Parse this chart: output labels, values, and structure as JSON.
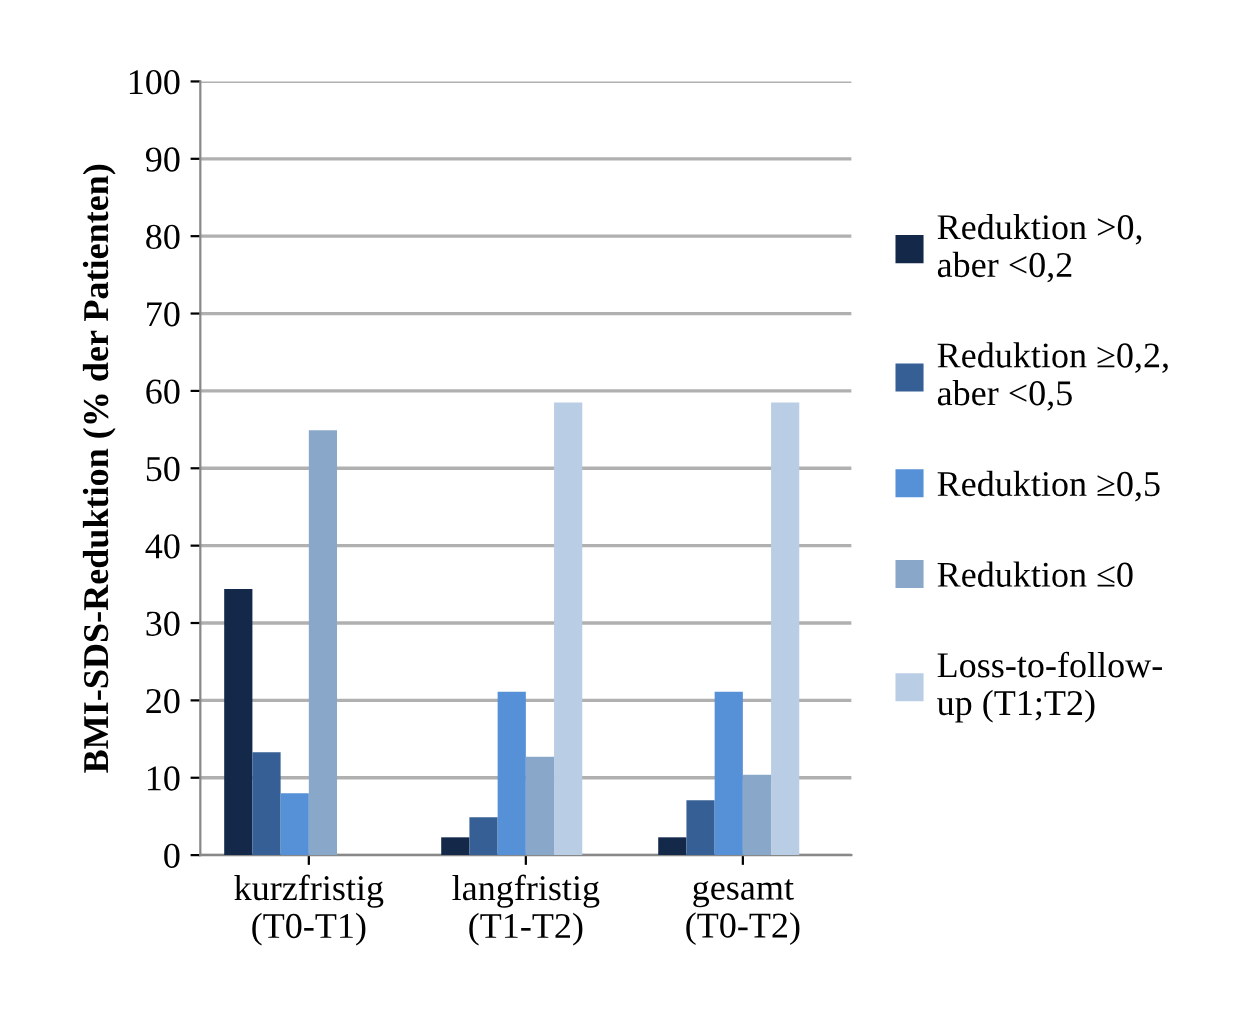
{
  "chart_data": {
    "type": "bar",
    "ylabel": "BMI-SDS-Reduktion (% der Patienten)",
    "categories": [
      "kurzfristig\n(T0-T1)",
      "langfristig\n(T1-T2)",
      "gesamt\n(T0-T2)"
    ],
    "series": [
      {
        "name": "Reduktion >0,\naber <0,2",
        "color": "#14294a",
        "values": [
          34.4,
          2.3,
          2.3
        ]
      },
      {
        "name": "Reduktion ≥0,2,\naber <0,5",
        "color": "#365f95",
        "values": [
          13.3,
          4.9,
          7.1
        ]
      },
      {
        "name": "Reduktion ≥0,5",
        "color": "#5690d7",
        "values": [
          8.0,
          21.1,
          21.1
        ]
      },
      {
        "name": "Reduktion ≤0",
        "color": "#89a7c8",
        "values": [
          54.9,
          12.7,
          10.4
        ]
      },
      {
        "name": "Loss-to-follow-\nup (T1;T2)",
        "color": "#b9cde5",
        "values": [
          null,
          58.5,
          58.5
        ]
      }
    ],
    "ylim": [
      0,
      100
    ],
    "yticks": [
      0,
      10,
      20,
      30,
      40,
      50,
      60,
      70,
      80,
      90,
      100
    ],
    "grid": "y",
    "legend": "right"
  }
}
